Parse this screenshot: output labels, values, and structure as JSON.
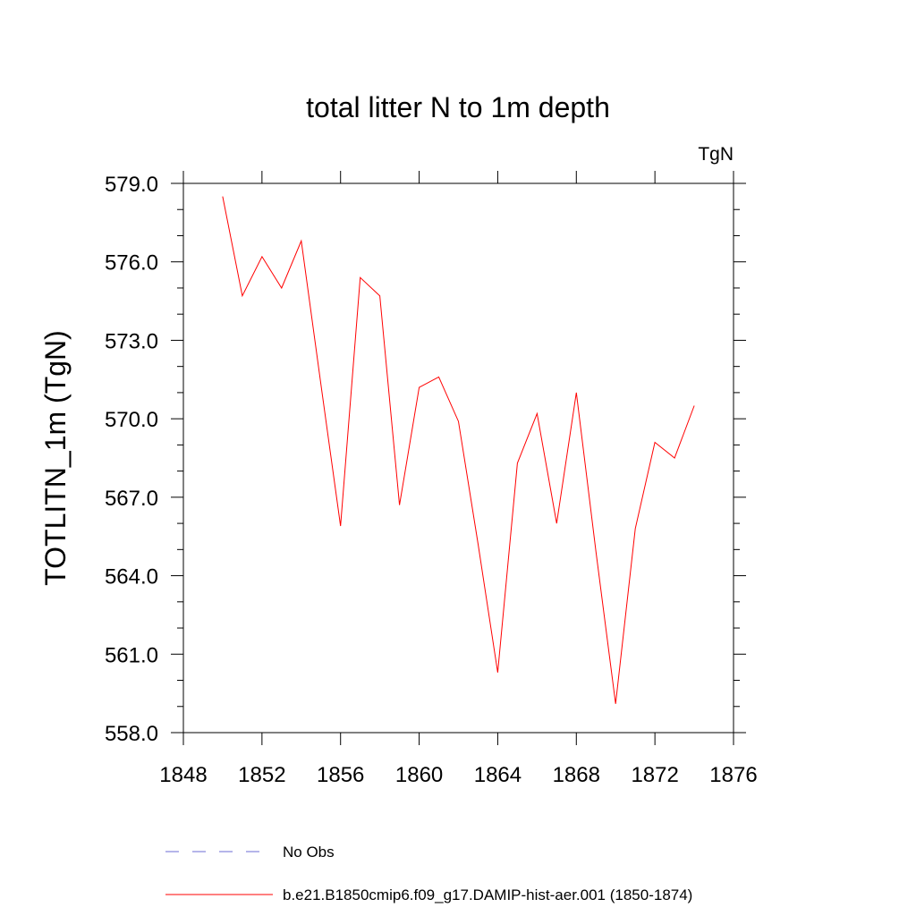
{
  "chart_data": {
    "type": "line",
    "title": "total litter N to 1m depth",
    "units_label": "TgN",
    "xlabel": "",
    "ylabel": "TOTLITN_1m  (TgN)",
    "xlim": [
      1848,
      1876
    ],
    "ylim": [
      558.0,
      579.0
    ],
    "x_ticks": [
      "1848",
      "1852",
      "1856",
      "1860",
      "1864",
      "1868",
      "1872",
      "1876"
    ],
    "y_ticks": [
      "558.0",
      "561.0",
      "564.0",
      "567.0",
      "570.0",
      "573.0",
      "576.0",
      "579.0"
    ],
    "grid": false,
    "legend_position": "bottom",
    "series": [
      {
        "name": "b.e21.B1850cmip6.f09_g17.DAMIP-hist-aer.001 (1850-1874)",
        "color": "#ff0000",
        "style": "solid",
        "x": [
          1850,
          1851,
          1852,
          1853,
          1854,
          1855,
          1856,
          1857,
          1858,
          1859,
          1860,
          1861,
          1862,
          1863,
          1864,
          1865,
          1866,
          1867,
          1868,
          1869,
          1870,
          1871,
          1872,
          1873,
          1874
        ],
        "values": [
          578.5,
          574.7,
          576.2,
          575.0,
          576.8,
          571.3,
          565.9,
          575.4,
          574.7,
          566.7,
          571.2,
          571.6,
          569.9,
          565.2,
          560.3,
          568.3,
          570.2,
          566.0,
          571.0,
          564.9,
          559.1,
          565.8,
          569.1,
          568.5,
          570.5
        ]
      },
      {
        "name": "No Obs",
        "color": "#6b6bd6",
        "style": "dashed",
        "x": [],
        "values": []
      }
    ]
  }
}
